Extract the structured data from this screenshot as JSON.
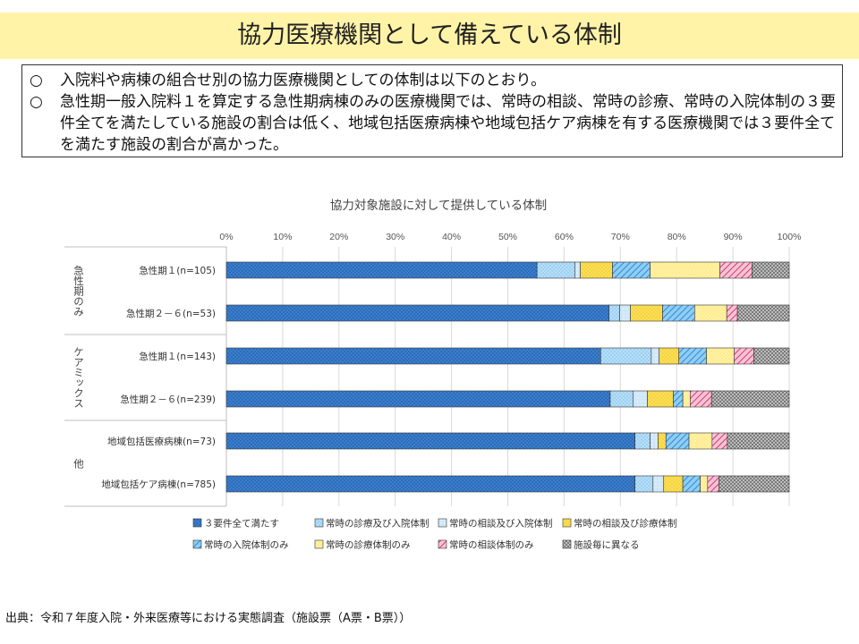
{
  "header": {
    "title": "協力医療機関として備えている体制"
  },
  "summary": {
    "bullet_mark": "○",
    "lines": [
      "入院料や病棟の組合せ別の協力医療機関としての体制は以下のとおり。",
      "急性期一般入院料１を算定する急性期病棟のみの医療機関では、常時の相談、常時の診療、常時の入院体制の３要件全てを満たしている施設の割合は低く、地域包括医療病棟や地域包括ケア病棟を有する医療機関では３要件全てを満たす施設の割合が高かった。"
    ]
  },
  "source": "出典：令和７年度入院・外来医療等における実態調査（施設票（A票・B票））",
  "chart_data": {
    "type": "bar",
    "orientation": "horizontal",
    "stacked": true,
    "title": "協力対象施設に対して提供している体制",
    "xlim": [
      0,
      100
    ],
    "x_ticks": [
      "0%",
      "10%",
      "20%",
      "30%",
      "40%",
      "50%",
      "60%",
      "70%",
      "80%",
      "90%",
      "100%"
    ],
    "legend_position": "bottom",
    "groups": [
      {
        "label": "急性期のみ",
        "categories": [
          "急性期１(n=105)",
          "急性期２－６(n=53)"
        ]
      },
      {
        "label": "ケアミックス",
        "categories": [
          "急性期１(n=143)",
          "急性期２－６(n=239)"
        ]
      },
      {
        "label": "他",
        "categories": [
          "地域包括医療病棟(n=73)",
          "地域包括ケア病棟(n=785)"
        ]
      }
    ],
    "categories": [
      "急性期１(n=105)",
      "急性期２－６(n=53)",
      "急性期１(n=143)",
      "急性期２－６(n=239)",
      "地域包括医療病棟(n=73)",
      "地域包括ケア病棟(n=785)"
    ],
    "series": [
      {
        "name": "３要件全て満たす",
        "color": "#3a7fd0",
        "pattern": "dots-dark",
        "values": [
          55.2,
          68.0,
          66.5,
          68.2,
          72.6,
          72.6
        ]
      },
      {
        "name": "常時の診療及び入院体制",
        "color": "#9dd1f3",
        "pattern": "dots-light",
        "values": [
          6.7,
          1.9,
          9.0,
          4.1,
          2.7,
          3.2
        ]
      },
      {
        "name": "常時の相談及び入院体制",
        "color": "#cfe7f8",
        "pattern": "dots-light",
        "values": [
          1.0,
          1.9,
          1.4,
          2.5,
          1.4,
          1.9
        ]
      },
      {
        "name": "常時の相談及び診療体制",
        "color": "#f7d538",
        "pattern": "dots-warm",
        "values": [
          5.7,
          5.7,
          3.5,
          4.6,
          1.4,
          3.4
        ]
      },
      {
        "name": "常時の入院体制のみ",
        "color": "#5fb2ea",
        "pattern": "hatch-blue",
        "values": [
          6.7,
          5.7,
          4.9,
          1.7,
          4.1,
          3.1
        ]
      },
      {
        "name": "常時の診療体制のみ",
        "color": "#ffec8a",
        "pattern": "dots-warm",
        "values": [
          12.4,
          5.7,
          4.9,
          1.3,
          4.1,
          1.3
        ]
      },
      {
        "name": "常時の相談体制のみ",
        "color": "#e6608c",
        "pattern": "hatch-pink",
        "values": [
          5.7,
          1.9,
          3.5,
          3.8,
          2.7,
          2.0
        ]
      },
      {
        "name": "施設毎に異なる",
        "color": "#9e9e9e",
        "pattern": "checker",
        "values": [
          6.6,
          9.2,
          6.3,
          13.8,
          11.0,
          12.5
        ]
      }
    ]
  }
}
